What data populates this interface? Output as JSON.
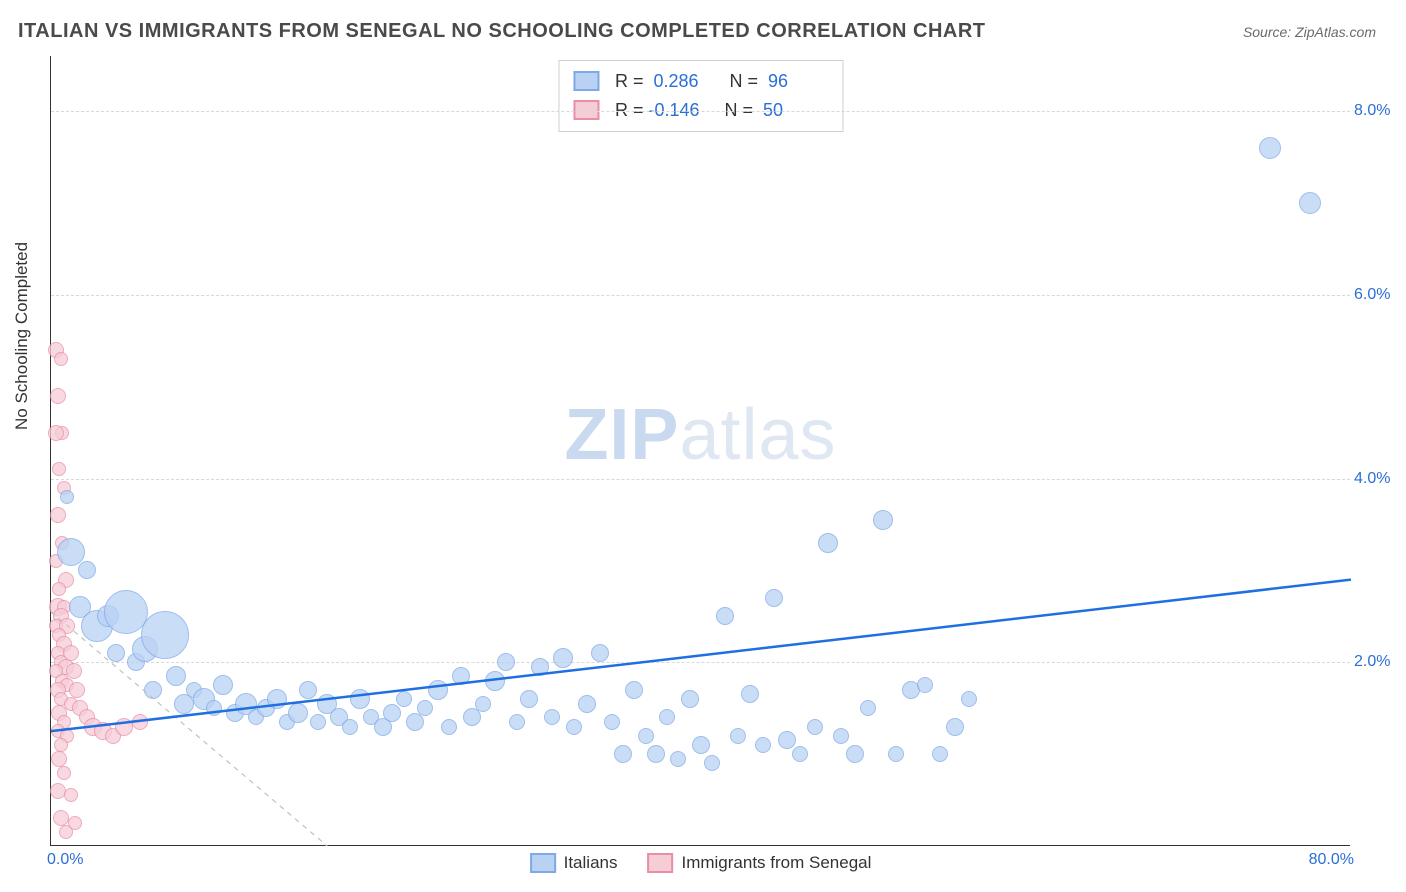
{
  "title": "ITALIAN VS IMMIGRANTS FROM SENEGAL NO SCHOOLING COMPLETED CORRELATION CHART",
  "source": "Source: ZipAtlas.com",
  "ylabel": "No Schooling Completed",
  "watermark_bold": "ZIP",
  "watermark_rest": "atlas",
  "chart": {
    "type": "scatter",
    "background_color": "#ffffff",
    "grid_color": "#d8d8d8",
    "axis_color": "#333333",
    "tick_color": "#2a6fd6",
    "xlim": [
      0,
      80
    ],
    "ylim": [
      0,
      8.6
    ],
    "ytick_step": 2.0,
    "yticks": [
      "2.0%",
      "4.0%",
      "6.0%",
      "8.0%"
    ],
    "xticks": {
      "left": "0.0%",
      "right": "80.0%"
    },
    "label_fontsize": 17,
    "tick_fontsize": 16,
    "title_fontsize": 20
  },
  "series": {
    "a": {
      "label": "Italians",
      "fill": "#b9d2f4",
      "stroke": "#7fa9e6",
      "R": "0.286",
      "N": "96",
      "trend": {
        "x1": 0,
        "y1": 1.25,
        "x2": 80,
        "y2": 2.9,
        "stroke": "#1f6fe0",
        "width": 2.5,
        "dash": "none"
      },
      "marker_stroke_width": 1.5,
      "marker_opacity": 0.75,
      "points": [
        {
          "x": 1.0,
          "y": 3.8,
          "r": 7
        },
        {
          "x": 1.2,
          "y": 3.2,
          "r": 14
        },
        {
          "x": 1.8,
          "y": 2.6,
          "r": 11
        },
        {
          "x": 2.2,
          "y": 3.0,
          "r": 9
        },
        {
          "x": 2.8,
          "y": 2.4,
          "r": 16
        },
        {
          "x": 3.5,
          "y": 2.5,
          "r": 11
        },
        {
          "x": 4.0,
          "y": 2.1,
          "r": 9
        },
        {
          "x": 4.6,
          "y": 2.55,
          "r": 22
        },
        {
          "x": 5.2,
          "y": 2.0,
          "r": 9
        },
        {
          "x": 5.8,
          "y": 2.15,
          "r": 13
        },
        {
          "x": 6.3,
          "y": 1.7,
          "r": 9
        },
        {
          "x": 7.0,
          "y": 2.3,
          "r": 24
        },
        {
          "x": 7.7,
          "y": 1.85,
          "r": 10
        },
        {
          "x": 8.2,
          "y": 1.55,
          "r": 10
        },
        {
          "x": 8.8,
          "y": 1.7,
          "r": 8
        },
        {
          "x": 9.4,
          "y": 1.6,
          "r": 11
        },
        {
          "x": 10.0,
          "y": 1.5,
          "r": 8
        },
        {
          "x": 10.6,
          "y": 1.75,
          "r": 10
        },
        {
          "x": 11.3,
          "y": 1.45,
          "r": 9
        },
        {
          "x": 12.0,
          "y": 1.55,
          "r": 11
        },
        {
          "x": 12.6,
          "y": 1.4,
          "r": 8
        },
        {
          "x": 13.2,
          "y": 1.5,
          "r": 9
        },
        {
          "x": 13.9,
          "y": 1.6,
          "r": 10
        },
        {
          "x": 14.5,
          "y": 1.35,
          "r": 8
        },
        {
          "x": 15.2,
          "y": 1.45,
          "r": 10
        },
        {
          "x": 15.8,
          "y": 1.7,
          "r": 9
        },
        {
          "x": 16.4,
          "y": 1.35,
          "r": 8
        },
        {
          "x": 17.0,
          "y": 1.55,
          "r": 10
        },
        {
          "x": 17.7,
          "y": 1.4,
          "r": 9
        },
        {
          "x": 18.4,
          "y": 1.3,
          "r": 8
        },
        {
          "x": 19.0,
          "y": 1.6,
          "r": 10
        },
        {
          "x": 19.7,
          "y": 1.4,
          "r": 8
        },
        {
          "x": 20.4,
          "y": 1.3,
          "r": 9
        },
        {
          "x": 21.0,
          "y": 1.45,
          "r": 9
        },
        {
          "x": 21.7,
          "y": 1.6,
          "r": 8
        },
        {
          "x": 22.4,
          "y": 1.35,
          "r": 9
        },
        {
          "x": 23.0,
          "y": 1.5,
          "r": 8
        },
        {
          "x": 23.8,
          "y": 1.7,
          "r": 10
        },
        {
          "x": 24.5,
          "y": 1.3,
          "r": 8
        },
        {
          "x": 25.2,
          "y": 1.85,
          "r": 9
        },
        {
          "x": 25.9,
          "y": 1.4,
          "r": 9
        },
        {
          "x": 26.6,
          "y": 1.55,
          "r": 8
        },
        {
          "x": 27.3,
          "y": 1.8,
          "r": 10
        },
        {
          "x": 28.0,
          "y": 2.0,
          "r": 9
        },
        {
          "x": 28.7,
          "y": 1.35,
          "r": 8
        },
        {
          "x": 29.4,
          "y": 1.6,
          "r": 9
        },
        {
          "x": 30.1,
          "y": 1.95,
          "r": 9
        },
        {
          "x": 30.8,
          "y": 1.4,
          "r": 8
        },
        {
          "x": 31.5,
          "y": 2.05,
          "r": 10
        },
        {
          "x": 32.2,
          "y": 1.3,
          "r": 8
        },
        {
          "x": 33.0,
          "y": 1.55,
          "r": 9
        },
        {
          "x": 33.8,
          "y": 2.1,
          "r": 9
        },
        {
          "x": 34.5,
          "y": 1.35,
          "r": 8
        },
        {
          "x": 35.2,
          "y": 1.0,
          "r": 9
        },
        {
          "x": 35.9,
          "y": 1.7,
          "r": 9
        },
        {
          "x": 36.6,
          "y": 1.2,
          "r": 8
        },
        {
          "x": 37.2,
          "y": 1.0,
          "r": 9
        },
        {
          "x": 37.9,
          "y": 1.4,
          "r": 8
        },
        {
          "x": 38.6,
          "y": 0.95,
          "r": 8
        },
        {
          "x": 39.3,
          "y": 1.6,
          "r": 9
        },
        {
          "x": 40.0,
          "y": 1.1,
          "r": 9
        },
        {
          "x": 40.7,
          "y": 0.9,
          "r": 8
        },
        {
          "x": 41.5,
          "y": 2.5,
          "r": 9
        },
        {
          "x": 42.3,
          "y": 1.2,
          "r": 8
        },
        {
          "x": 43.0,
          "y": 1.65,
          "r": 9
        },
        {
          "x": 43.8,
          "y": 1.1,
          "r": 8
        },
        {
          "x": 44.5,
          "y": 2.7,
          "r": 9
        },
        {
          "x": 45.3,
          "y": 1.15,
          "r": 9
        },
        {
          "x": 46.1,
          "y": 1.0,
          "r": 8
        },
        {
          "x": 47.0,
          "y": 1.3,
          "r": 8
        },
        {
          "x": 47.8,
          "y": 3.3,
          "r": 10
        },
        {
          "x": 48.6,
          "y": 1.2,
          "r": 8
        },
        {
          "x": 49.5,
          "y": 1.0,
          "r": 9
        },
        {
          "x": 50.3,
          "y": 1.5,
          "r": 8
        },
        {
          "x": 51.2,
          "y": 3.55,
          "r": 10
        },
        {
          "x": 52.0,
          "y": 1.0,
          "r": 8
        },
        {
          "x": 52.9,
          "y": 1.7,
          "r": 9
        },
        {
          "x": 53.8,
          "y": 1.75,
          "r": 8
        },
        {
          "x": 54.7,
          "y": 1.0,
          "r": 8
        },
        {
          "x": 55.6,
          "y": 1.3,
          "r": 9
        },
        {
          "x": 56.5,
          "y": 1.6,
          "r": 8
        },
        {
          "x": 75.0,
          "y": 7.6,
          "r": 11
        },
        {
          "x": 77.5,
          "y": 7.0,
          "r": 11
        }
      ]
    },
    "b": {
      "label": "Immigrants from Senegal",
      "fill": "#f6cdd7",
      "stroke": "#e98fa5",
      "R": "-0.146",
      "N": "50",
      "trend": {
        "x1": 0,
        "y1": 2.55,
        "x2": 17,
        "y2": 0.0,
        "stroke": "#c0c0c0",
        "width": 1.2,
        "dash": "5,5"
      },
      "marker_stroke_width": 1.5,
      "marker_opacity": 0.75,
      "points": [
        {
          "x": 0.3,
          "y": 5.4,
          "r": 8
        },
        {
          "x": 0.6,
          "y": 5.3,
          "r": 7
        },
        {
          "x": 0.4,
          "y": 4.9,
          "r": 8
        },
        {
          "x": 0.7,
          "y": 4.5,
          "r": 7
        },
        {
          "x": 0.3,
          "y": 4.5,
          "r": 8
        },
        {
          "x": 0.5,
          "y": 4.1,
          "r": 7
        },
        {
          "x": 0.8,
          "y": 3.9,
          "r": 7
        },
        {
          "x": 0.4,
          "y": 3.6,
          "r": 8
        },
        {
          "x": 0.7,
          "y": 3.3,
          "r": 7
        },
        {
          "x": 0.3,
          "y": 3.1,
          "r": 7
        },
        {
          "x": 0.9,
          "y": 2.9,
          "r": 8
        },
        {
          "x": 0.5,
          "y": 2.8,
          "r": 7
        },
        {
          "x": 0.4,
          "y": 2.6,
          "r": 9
        },
        {
          "x": 0.8,
          "y": 2.6,
          "r": 7
        },
        {
          "x": 0.6,
          "y": 2.5,
          "r": 8
        },
        {
          "x": 0.3,
          "y": 2.4,
          "r": 7
        },
        {
          "x": 1.0,
          "y": 2.4,
          "r": 8
        },
        {
          "x": 0.5,
          "y": 2.3,
          "r": 7
        },
        {
          "x": 0.8,
          "y": 2.2,
          "r": 8
        },
        {
          "x": 0.4,
          "y": 2.1,
          "r": 7
        },
        {
          "x": 1.2,
          "y": 2.1,
          "r": 8
        },
        {
          "x": 0.6,
          "y": 2.0,
          "r": 7
        },
        {
          "x": 0.9,
          "y": 1.95,
          "r": 8
        },
        {
          "x": 0.3,
          "y": 1.9,
          "r": 7
        },
        {
          "x": 1.4,
          "y": 1.9,
          "r": 8
        },
        {
          "x": 0.7,
          "y": 1.8,
          "r": 7
        },
        {
          "x": 1.0,
          "y": 1.75,
          "r": 7
        },
        {
          "x": 0.4,
          "y": 1.7,
          "r": 8
        },
        {
          "x": 1.6,
          "y": 1.7,
          "r": 8
        },
        {
          "x": 0.6,
          "y": 1.6,
          "r": 7
        },
        {
          "x": 1.2,
          "y": 1.55,
          "r": 7
        },
        {
          "x": 0.5,
          "y": 1.45,
          "r": 8
        },
        {
          "x": 1.8,
          "y": 1.5,
          "r": 8
        },
        {
          "x": 0.8,
          "y": 1.35,
          "r": 7
        },
        {
          "x": 2.2,
          "y": 1.4,
          "r": 8
        },
        {
          "x": 0.4,
          "y": 1.25,
          "r": 7
        },
        {
          "x": 2.6,
          "y": 1.3,
          "r": 9
        },
        {
          "x": 1.0,
          "y": 1.2,
          "r": 7
        },
        {
          "x": 3.2,
          "y": 1.25,
          "r": 9
        },
        {
          "x": 0.6,
          "y": 1.1,
          "r": 7
        },
        {
          "x": 3.8,
          "y": 1.2,
          "r": 8
        },
        {
          "x": 0.5,
          "y": 0.95,
          "r": 8
        },
        {
          "x": 4.5,
          "y": 1.3,
          "r": 9
        },
        {
          "x": 0.8,
          "y": 0.8,
          "r": 7
        },
        {
          "x": 5.5,
          "y": 1.35,
          "r": 8
        },
        {
          "x": 0.4,
          "y": 0.6,
          "r": 8
        },
        {
          "x": 1.2,
          "y": 0.55,
          "r": 7
        },
        {
          "x": 0.6,
          "y": 0.3,
          "r": 8
        },
        {
          "x": 0.9,
          "y": 0.15,
          "r": 7
        },
        {
          "x": 1.5,
          "y": 0.25,
          "r": 7
        }
      ]
    }
  },
  "legend_bottom": {
    "a": "Italians",
    "b": "Immigrants from Senegal"
  },
  "legend_top_labels": {
    "R": "R =",
    "N": "N ="
  }
}
